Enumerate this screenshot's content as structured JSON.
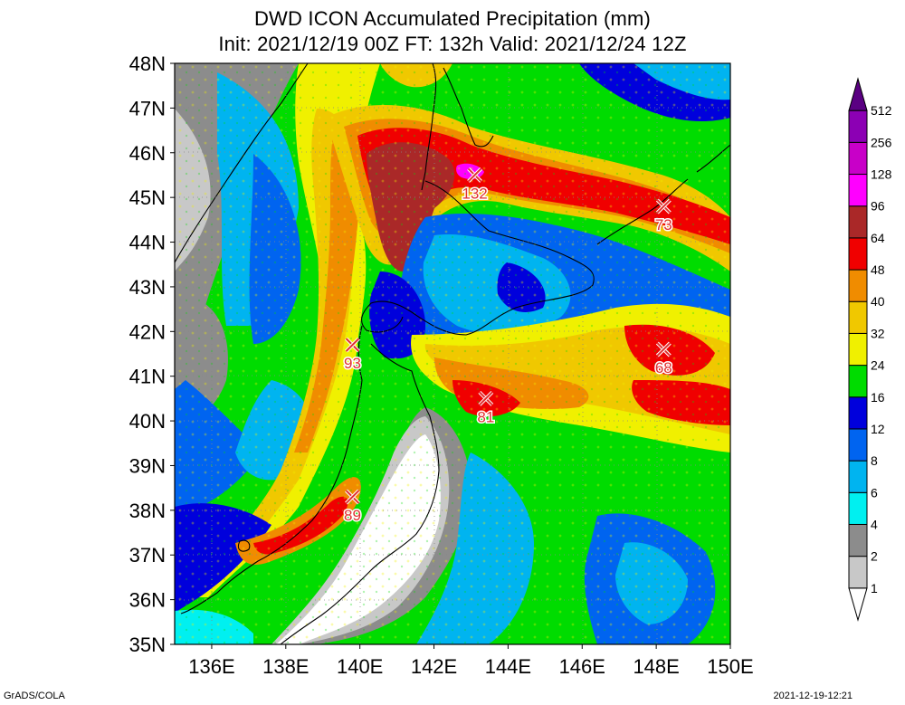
{
  "title": {
    "line1": "DWD ICON Accumulated Precipitation (mm)",
    "line2": "Init: 2021/12/19 00Z  FT: 132h  Valid: 2021/12/24 12Z"
  },
  "axes": {
    "lat_labels": [
      "48N",
      "47N",
      "46N",
      "45N",
      "44N",
      "43N",
      "42N",
      "41N",
      "40N",
      "39N",
      "38N",
      "37N",
      "36N",
      "35N"
    ],
    "lon_labels": [
      "136E",
      "138E",
      "140E",
      "142E",
      "144E",
      "146E",
      "148E",
      "150E"
    ],
    "lat_range": [
      35,
      48
    ],
    "lon_range": [
      135,
      150
    ]
  },
  "legend": {
    "levels": [
      "1",
      "2",
      "4",
      "6",
      "8",
      "12",
      "16",
      "24",
      "32",
      "40",
      "48",
      "64",
      "96",
      "128",
      "256",
      "512"
    ],
    "colors": [
      "#ffffff",
      "#c8c8c8",
      "#8c8c8c",
      "#00f0f0",
      "#00b4f0",
      "#0064f0",
      "#0000dc",
      "#00dc00",
      "#f0f000",
      "#f0c800",
      "#f08c00",
      "#f00000",
      "#aa2828",
      "#ff00ff",
      "#c800c8",
      "#8c00b4",
      "#5a0082"
    ]
  },
  "markers": [
    {
      "lon": 143.1,
      "lat": 45.5,
      "value": "132"
    },
    {
      "lon": 148.2,
      "lat": 44.8,
      "value": "73"
    },
    {
      "lon": 139.8,
      "lat": 41.7,
      "value": "93"
    },
    {
      "lon": 148.2,
      "lat": 41.6,
      "value": "68"
    },
    {
      "lon": 143.4,
      "lat": 40.5,
      "value": "81"
    },
    {
      "lon": 139.8,
      "lat": 38.3,
      "value": "89"
    }
  ],
  "footer": {
    "left": "GrADS/COLA",
    "right": "2021-12-19-12:21"
  }
}
